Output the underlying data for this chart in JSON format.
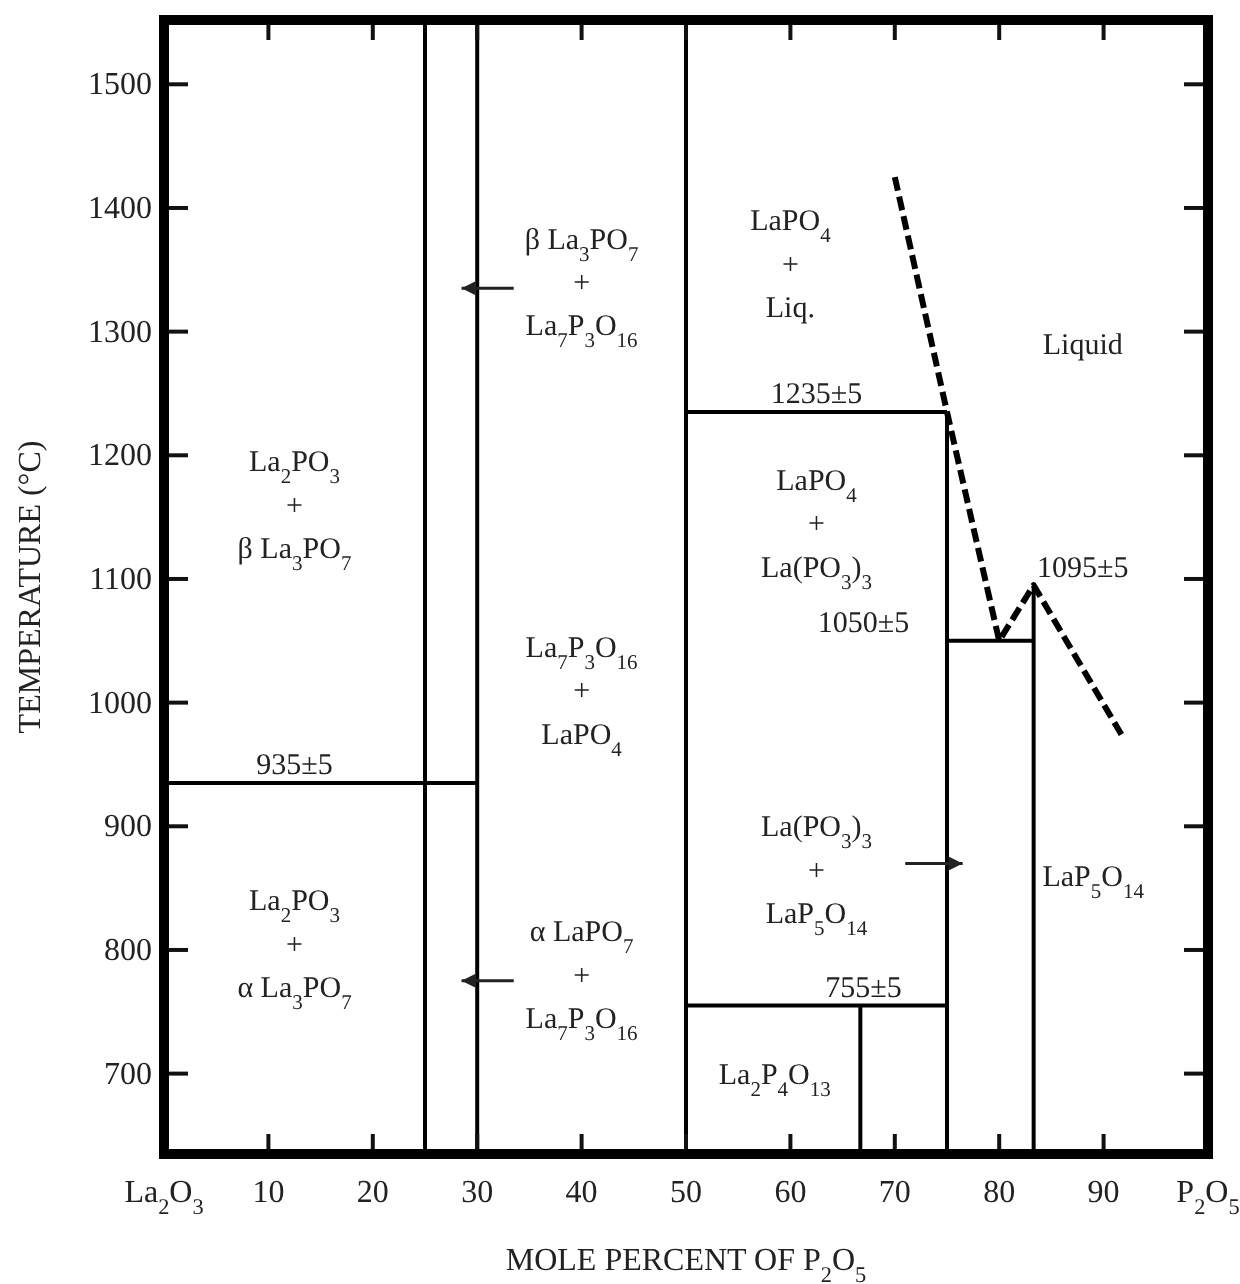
{
  "chart_data": {
    "type": "line",
    "xlabel": "MOLE PERCENT OF P$_{2}$O$_{5}$",
    "ylabel": "TEMPERATURE (°C)",
    "xlim": [
      0,
      100
    ],
    "ylim": [
      635,
      1552
    ],
    "xticks": [
      {
        "value": 0,
        "label": "La$_{2}$O$_{3}$"
      },
      10,
      20,
      30,
      40,
      50,
      60,
      70,
      80,
      90,
      {
        "value": 100,
        "label": "P$_{2}$O$_{5}$"
      }
    ],
    "yticks": [
      700,
      800,
      900,
      1000,
      1100,
      1200,
      1300,
      1400,
      1500
    ],
    "marker": "none",
    "line_style": "solid",
    "series": [
      {
        "color": "#000000",
        "x": [
          25,
          25
        ],
        "values": [
          635,
          1552
        ]
      },
      {
        "color": "#000000",
        "x": [
          30,
          30
        ],
        "values": [
          635,
          1552
        ]
      },
      {
        "color": "#000000",
        "x": [
          0,
          30
        ],
        "values": [
          935,
          935
        ]
      },
      {
        "color": "#000000",
        "x": [
          50,
          50
        ],
        "values": [
          635,
          1552
        ]
      },
      {
        "color": "#000000",
        "x": [
          50,
          75
        ],
        "values": [
          1235,
          1235
        ]
      },
      {
        "color": "#000000",
        "x": [
          75,
          75
        ],
        "values": [
          635,
          1235
        ]
      },
      {
        "color": "#000000",
        "x": [
          50,
          75
        ],
        "values": [
          755,
          755
        ]
      },
      {
        "color": "#000000",
        "x": [
          66.7,
          66.7
        ],
        "values": [
          635,
          755
        ]
      },
      {
        "color": "#000000",
        "x": [
          75,
          83.3
        ],
        "values": [
          1050,
          1050
        ]
      },
      {
        "color": "#000000",
        "x": [
          83.3,
          83.3
        ],
        "values": [
          635,
          1095
        ]
      },
      {
        "color": "#000000",
        "x": [
          70,
          75,
          80,
          83.3,
          92
        ],
        "values": [
          1425,
          1235,
          1050,
          1095,
          970
        ],
        "line_style": "dashed"
      }
    ],
    "annotations": [
      "β La$_{3}$PO$_{7}$",
      "+",
      "La$_{7}$P$_{3}$O$_{16}$",
      "La$_{2}$PO$_{3}$",
      "+",
      "β La$_{3}$PO$_{7}$",
      "La$_{7}$P$_{3}$O$_{16}$",
      "+",
      "LaPO$_{4}$",
      "935±5",
      "La$_{2}$PO$_{3}$",
      "+",
      "α La$_{3}$PO$_{7}$",
      "α LaPO$_{7}$",
      "+",
      "La$_{7}$P$_{3}$O$_{16}$",
      "LaPO$_{4}$",
      "+",
      "Liq.",
      "1235±5",
      "Liquid",
      "LaPO$_{4}$",
      "+",
      "La(PO$_{3}$)$_{3}$",
      "1050±5",
      "1095±5",
      "La(PO$_{3}$)$_{3}$",
      "+",
      "LaP$_{5}$O$_{14}$",
      "LaP$_{5}$O$_{14}$",
      "755±5",
      "La$_{2}$P$_{4}$O$_{13}$"
    ]
  }
}
